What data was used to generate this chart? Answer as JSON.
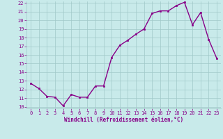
{
  "x": [
    0,
    1,
    2,
    3,
    4,
    5,
    6,
    7,
    8,
    9,
    10,
    11,
    12,
    13,
    14,
    15,
    16,
    17,
    18,
    19,
    20,
    21,
    22,
    23
  ],
  "y": [
    12.7,
    12.1,
    11.2,
    11.1,
    10.1,
    11.4,
    11.1,
    11.1,
    12.4,
    12.4,
    15.7,
    17.1,
    17.7,
    18.4,
    19.0,
    20.8,
    21.1,
    21.1,
    21.7,
    22.1,
    19.5,
    20.9,
    17.8,
    15.6
  ],
  "line_color": "#880088",
  "marker": "s",
  "marker_size": 2.0,
  "bg_color": "#c8eaea",
  "grid_color": "#a0c8c8",
  "xlabel": "Windchill (Refroidissement éolien,°C)",
  "xlabel_color": "#880088",
  "tick_color": "#880088",
  "ylim": [
    10,
    22
  ],
  "xlim": [
    -0.5,
    23.5
  ],
  "yticks": [
    10,
    11,
    12,
    13,
    14,
    15,
    16,
    17,
    18,
    19,
    20,
    21,
    22
  ],
  "xticks": [
    0,
    1,
    2,
    3,
    4,
    5,
    6,
    7,
    8,
    9,
    10,
    11,
    12,
    13,
    14,
    15,
    16,
    17,
    18,
    19,
    20,
    21,
    22,
    23
  ],
  "line_width": 1.0,
  "tick_fontsize": 5.0,
  "xlabel_fontsize": 5.5
}
